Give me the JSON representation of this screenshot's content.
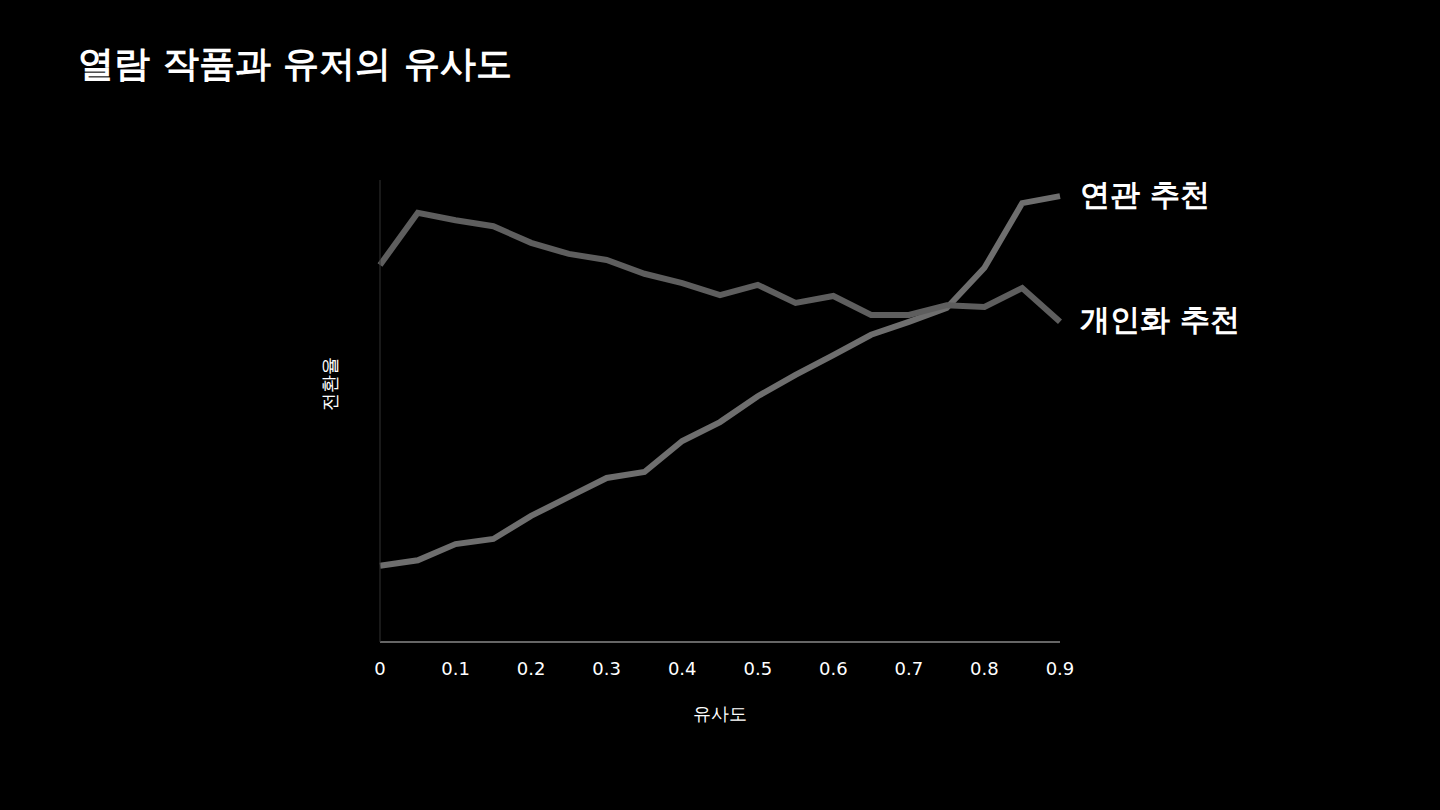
{
  "chart_data": {
    "type": "line",
    "title": "열람 작품과 유저의 유사도",
    "x_label": "유사도",
    "y_label": "전환율",
    "x": [
      0,
      0.05,
      0.1,
      0.15,
      0.2,
      0.25,
      0.3,
      0.35,
      0.4,
      0.45,
      0.5,
      0.55,
      0.6,
      0.65,
      0.7,
      0.75,
      0.8,
      0.85,
      0.9
    ],
    "series": [
      {
        "name": "연관 추천",
        "color": "#6e6e6e",
        "values": [
          16.5,
          17.7,
          21.2,
          22.3,
          27.3,
          31.4,
          35.5,
          36.8,
          43.5,
          47.6,
          53.2,
          57.8,
          62.1,
          66.5,
          69.3,
          72.3,
          81.0,
          95.0,
          96.5
        ]
      },
      {
        "name": "개인화 추천",
        "color": "#5e5e5e",
        "values": [
          81.6,
          92.9,
          91.3,
          90.0,
          86.4,
          84.0,
          82.7,
          79.7,
          77.7,
          75.1,
          77.3,
          73.4,
          74.9,
          70.8,
          70.8,
          72.9,
          72.5,
          76.6,
          69.3
        ]
      }
    ],
    "xlim": [
      0,
      0.9
    ],
    "xticks": [
      0,
      0.1,
      0.2,
      0.3,
      0.4,
      0.5,
      0.6,
      0.7,
      0.8,
      0.9
    ],
    "ylim": [
      0,
      100
    ],
    "grid": false,
    "tick_labels": "x"
  }
}
